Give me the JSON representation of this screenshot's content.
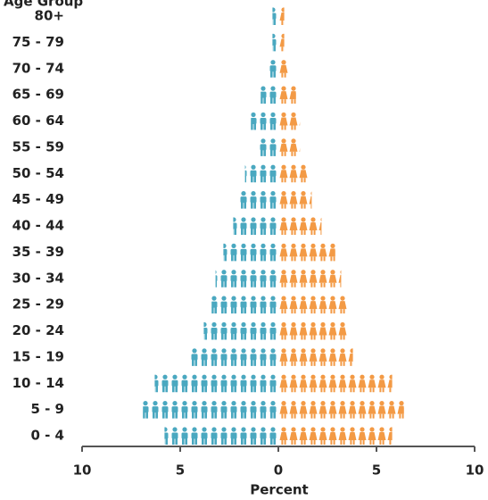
{
  "chart_data": {
    "type": "pictograph-pyramid",
    "y_label": "Age Group",
    "x_label": "Percent",
    "categories": [
      "80+",
      "75 - 79",
      "70 - 74",
      "65 - 69",
      "60 - 64",
      "55 - 59",
      "50 - 54",
      "45 - 49",
      "40 - 44",
      "35 - 39",
      "30 - 34",
      "25 - 29",
      "20 - 24",
      "15 - 19",
      "10 - 14",
      "5 - 9",
      "0 - 4"
    ],
    "series": [
      {
        "color": "#4aa8c0",
        "icon": "male",
        "values": [
          -0.3,
          -0.3,
          -0.5,
          -0.9,
          -1.4,
          -1.1,
          -1.7,
          -2.0,
          -2.3,
          -2.8,
          -3.2,
          -3.4,
          -3.8,
          -4.5,
          -6.3,
          -6.9,
          -5.8
        ]
      },
      {
        "color": "#f39a45",
        "icon": "female",
        "values": [
          0.3,
          0.3,
          0.5,
          0.9,
          1.1,
          1.1,
          1.5,
          1.7,
          2.2,
          2.9,
          3.2,
          3.5,
          3.5,
          3.8,
          5.8,
          6.4,
          5.8
        ]
      }
    ],
    "xlim": [
      -10,
      10
    ],
    "xticks": [
      {
        "value": -10,
        "label": "10"
      },
      {
        "value": -5,
        "label": "5"
      },
      0,
      5,
      10
    ]
  }
}
